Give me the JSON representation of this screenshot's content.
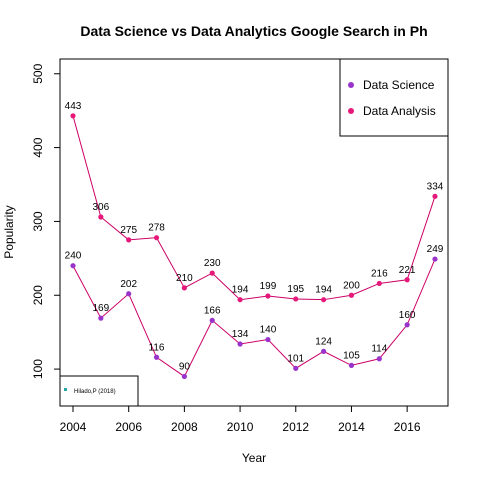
{
  "chart_data": {
    "type": "line",
    "title": "Data Science vs Data Analytics Google Search in Ph",
    "xlabel": "Year",
    "ylabel": "Popularity",
    "x": [
      2004,
      2005,
      2006,
      2007,
      2008,
      2009,
      2010,
      2011,
      2012,
      2013,
      2014,
      2015,
      2016,
      2017
    ],
    "xlim": [
      2004,
      2017
    ],
    "ylim": [
      50,
      520
    ],
    "x_ticks": [
      2004,
      2006,
      2008,
      2010,
      2012,
      2014,
      2016
    ],
    "y_ticks": [
      100,
      200,
      300,
      400,
      500
    ],
    "grid": false,
    "legend_position": "top-right",
    "series": [
      {
        "name": "Data Science",
        "color": "#9933cc",
        "line_color": "#cc0066",
        "values": [
          240,
          169,
          202,
          116,
          90,
          166,
          134,
          140,
          101,
          124,
          105,
          114,
          160,
          249
        ]
      },
      {
        "name": "Data Analysis",
        "color": "#e6197a",
        "line_color": "#cc0066",
        "values": [
          443,
          306,
          275,
          278,
          210,
          230,
          194,
          199,
          195,
          194,
          200,
          216,
          221,
          334
        ]
      }
    ],
    "annotation": {
      "text": "Hilado,P (2018)",
      "color": "#2aa6a6",
      "position": "bottom-left"
    }
  }
}
